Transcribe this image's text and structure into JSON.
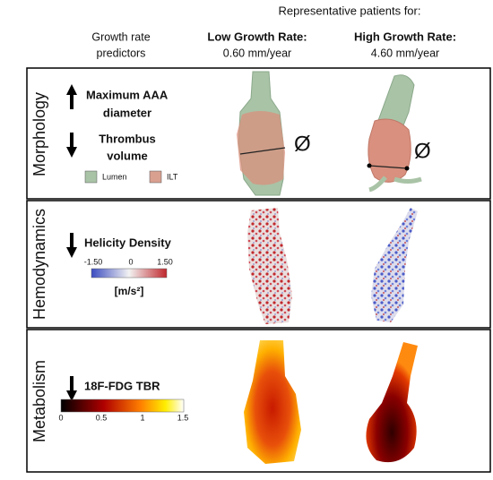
{
  "header": {
    "title": "Representative patients for:",
    "predictors_heading": [
      "Growth rate",
      "predictors"
    ],
    "low": {
      "title": "Low Growth Rate:",
      "rate": "0.60 mm/year"
    },
    "high": {
      "title": "High Growth Rate:",
      "rate": "4.60 mm/year"
    }
  },
  "rows": [
    {
      "label": "Morphology",
      "predictors": [
        {
          "lines": [
            "Maximum AAA",
            "diameter"
          ]
        },
        {
          "lines": [
            "Thrombus",
            "volume"
          ]
        }
      ],
      "legend": [
        "Lumen",
        "ILT"
      ],
      "symbol": "Ø"
    },
    {
      "label": "Hemodynamics",
      "predictor": "Helicity Density",
      "colorbar_ticks": [
        "-1.50",
        "0",
        "1.50"
      ],
      "unit": "[m/s²]"
    },
    {
      "label": "Metabolism",
      "predictor": "18F-FDG TBR",
      "colorbar_ticks": [
        "0",
        "0.5",
        "1",
        "1.5"
      ]
    }
  ]
}
